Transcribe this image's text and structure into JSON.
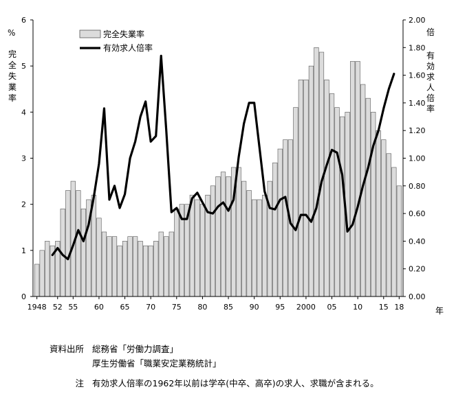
{
  "chart_data": {
    "type": "bar",
    "title": "",
    "x_years": [
      1948,
      1949,
      1950,
      1951,
      1952,
      1953,
      1954,
      1955,
      1956,
      1957,
      1958,
      1959,
      1960,
      1961,
      1962,
      1963,
      1964,
      1965,
      1966,
      1967,
      1968,
      1969,
      1970,
      1971,
      1972,
      1973,
      1974,
      1975,
      1976,
      1977,
      1978,
      1979,
      1980,
      1981,
      1982,
      1983,
      1984,
      1985,
      1986,
      1987,
      1988,
      1989,
      1990,
      1991,
      1992,
      1993,
      1994,
      1995,
      1996,
      1997,
      1998,
      1999,
      2000,
      2001,
      2002,
      2003,
      2004,
      2005,
      2006,
      2007,
      2008,
      2009,
      2010,
      2011,
      2012,
      2013,
      2014,
      2015,
      2016,
      2017,
      2018
    ],
    "x_tick_labels": [
      {
        "year": 1948,
        "label": "1948"
      },
      {
        "year": 1952,
        "label": "52"
      },
      {
        "year": 1955,
        "label": "55"
      },
      {
        "year": 1960,
        "label": "60"
      },
      {
        "year": 1965,
        "label": "65"
      },
      {
        "year": 1970,
        "label": "70"
      },
      {
        "year": 1975,
        "label": "75"
      },
      {
        "year": 1980,
        "label": "80"
      },
      {
        "year": 1985,
        "label": "85"
      },
      {
        "year": 1990,
        "label": "90"
      },
      {
        "year": 1995,
        "label": "95"
      },
      {
        "year": 2000,
        "label": "2000"
      },
      {
        "year": 2005,
        "label": "05"
      },
      {
        "year": 2010,
        "label": "10"
      },
      {
        "year": 2015,
        "label": "15"
      },
      {
        "year": 2018,
        "label": "18"
      }
    ],
    "x_unit": "年",
    "series": [
      {
        "name": "完全失業率",
        "kind": "bar",
        "axis": "left",
        "values": [
          0.7,
          1.0,
          1.2,
          1.1,
          1.2,
          1.9,
          2.3,
          2.5,
          2.3,
          1.9,
          2.1,
          2.2,
          1.7,
          1.4,
          1.3,
          1.3,
          1.1,
          1.2,
          1.3,
          1.3,
          1.2,
          1.1,
          1.1,
          1.2,
          1.4,
          1.3,
          1.4,
          1.9,
          2.0,
          2.0,
          2.2,
          2.1,
          2.0,
          2.2,
          2.4,
          2.6,
          2.7,
          2.6,
          2.8,
          2.8,
          2.5,
          2.3,
          2.1,
          2.1,
          2.2,
          2.5,
          2.9,
          3.2,
          3.4,
          3.4,
          4.1,
          4.7,
          4.7,
          5.0,
          5.4,
          5.3,
          4.7,
          4.4,
          4.1,
          3.9,
          4.0,
          5.1,
          5.1,
          4.6,
          4.3,
          4.0,
          3.6,
          3.4,
          3.1,
          2.8,
          2.4
        ]
      },
      {
        "name": "有効求人倍率",
        "kind": "line",
        "axis": "right",
        "start_year": 1951,
        "values": [
          0.3,
          0.35,
          0.3,
          0.27,
          0.37,
          0.48,
          0.4,
          0.52,
          0.72,
          0.96,
          1.36,
          0.7,
          0.8,
          0.64,
          0.74,
          1.0,
          1.12,
          1.3,
          1.41,
          1.12,
          1.16,
          1.74,
          1.2,
          0.61,
          0.64,
          0.56,
          0.56,
          0.71,
          0.75,
          0.68,
          0.61,
          0.6,
          0.65,
          0.68,
          0.62,
          0.7,
          1.01,
          1.25,
          1.4,
          1.4,
          1.08,
          0.76,
          0.64,
          0.63,
          0.7,
          0.72,
          0.53,
          0.48,
          0.59,
          0.59,
          0.54,
          0.64,
          0.83,
          0.95,
          1.06,
          1.04,
          0.88,
          0.47,
          0.52,
          0.65,
          0.8,
          0.93,
          1.09,
          1.2,
          1.36,
          1.5,
          1.61
        ]
      }
    ],
    "y_left": {
      "label_unit": "%",
      "label": "完全失業率",
      "range": [
        0,
        6
      ],
      "ticks": [
        "0",
        "1",
        "2",
        "3",
        "4",
        "5",
        "6"
      ]
    },
    "y_right": {
      "label_unit": "倍",
      "label": "有効求人倍率",
      "range": [
        0,
        2
      ],
      "ticks": [
        "0.00",
        "0.20",
        "0.40",
        "0.60",
        "0.80",
        "1.00",
        "1.20",
        "1.40",
        "1.60",
        "1.80",
        "2.00"
      ]
    },
    "legend": {
      "placement": "top-left",
      "entries": [
        "完全失業率",
        "有効求人倍率"
      ]
    }
  },
  "notes": {
    "source_label": "資料出所",
    "source_lines": [
      "総務省「労働力調査」",
      "厚生労働省「職業安定業務統計」"
    ],
    "note_label": "注",
    "note_text": "有効求人倍率の1962年以前は学卒(中卒、高卒)の求人、求職が含まれる。"
  }
}
